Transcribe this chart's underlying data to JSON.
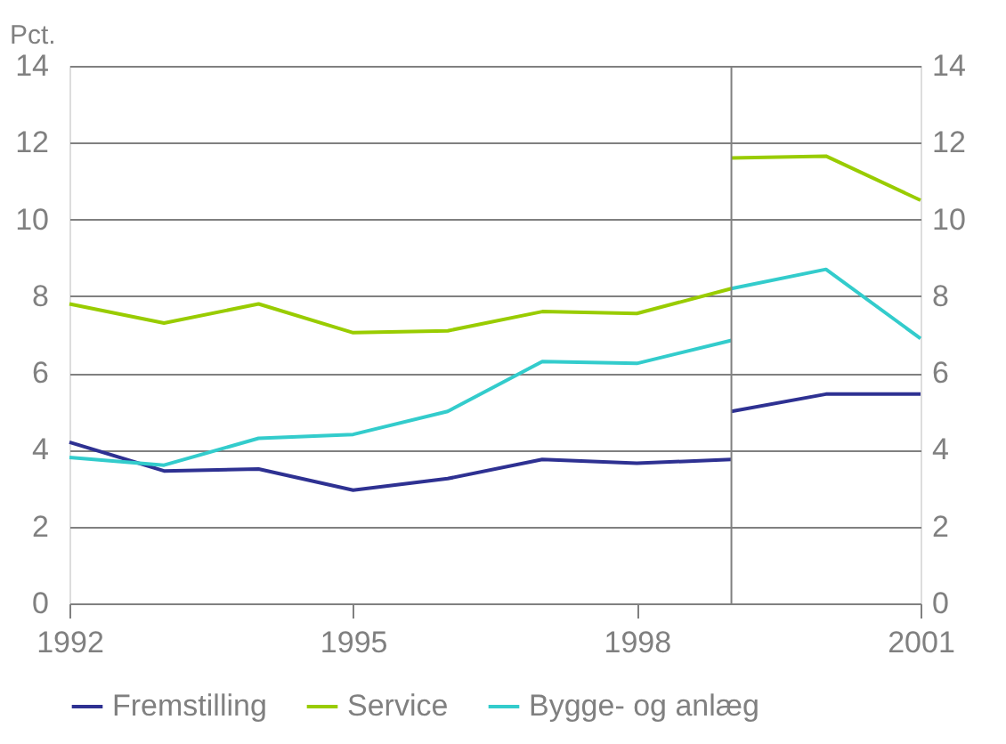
{
  "chart_data": {
    "type": "line",
    "ylabel": "Pct.",
    "xlim": [
      1992,
      2001
    ],
    "xticks": [
      1992,
      1995,
      1998,
      2001
    ],
    "ylim": [
      0,
      14
    ],
    "yticks": [
      0,
      2,
      4,
      6,
      8,
      10,
      12,
      14
    ],
    "y2lim": [
      0,
      14
    ],
    "y2ticks": [
      0,
      2,
      4,
      6,
      8,
      10,
      12,
      14
    ],
    "grid": "y",
    "legend": "bottom",
    "line_style": "solid",
    "marker": "none",
    "ref_lines": [
      {
        "axis": "x",
        "value": 1999,
        "color": "#808080"
      }
    ],
    "series": [
      {
        "name": "Fremstilling",
        "color": "#2e3192",
        "x": [
          1992,
          1993,
          1994,
          1995,
          1996,
          1997,
          1998,
          1999,
          null,
          1999,
          2000,
          2001
        ],
        "values": [
          4.2,
          3.45,
          3.5,
          2.95,
          3.25,
          3.75,
          3.65,
          3.75,
          null,
          5.0,
          5.45,
          5.45
        ]
      },
      {
        "name": "Service",
        "color": "#99cc00",
        "x": [
          1992,
          1993,
          1994,
          1995,
          1996,
          1997,
          1998,
          1999,
          null,
          1999,
          2000,
          2001
        ],
        "values": [
          7.8,
          7.3,
          7.8,
          7.05,
          7.1,
          7.6,
          7.55,
          8.2,
          null,
          11.6,
          11.65,
          10.5
        ]
      },
      {
        "name": "Bygge- og anlæg",
        "color": "#33cccc",
        "x": [
          1992,
          1993,
          1994,
          1995,
          1996,
          1997,
          1998,
          1999,
          null,
          1999,
          2000,
          2001
        ],
        "values": [
          3.8,
          3.6,
          4.3,
          4.4,
          5.0,
          6.3,
          6.25,
          6.85,
          null,
          8.2,
          8.7,
          6.9
        ]
      }
    ]
  }
}
